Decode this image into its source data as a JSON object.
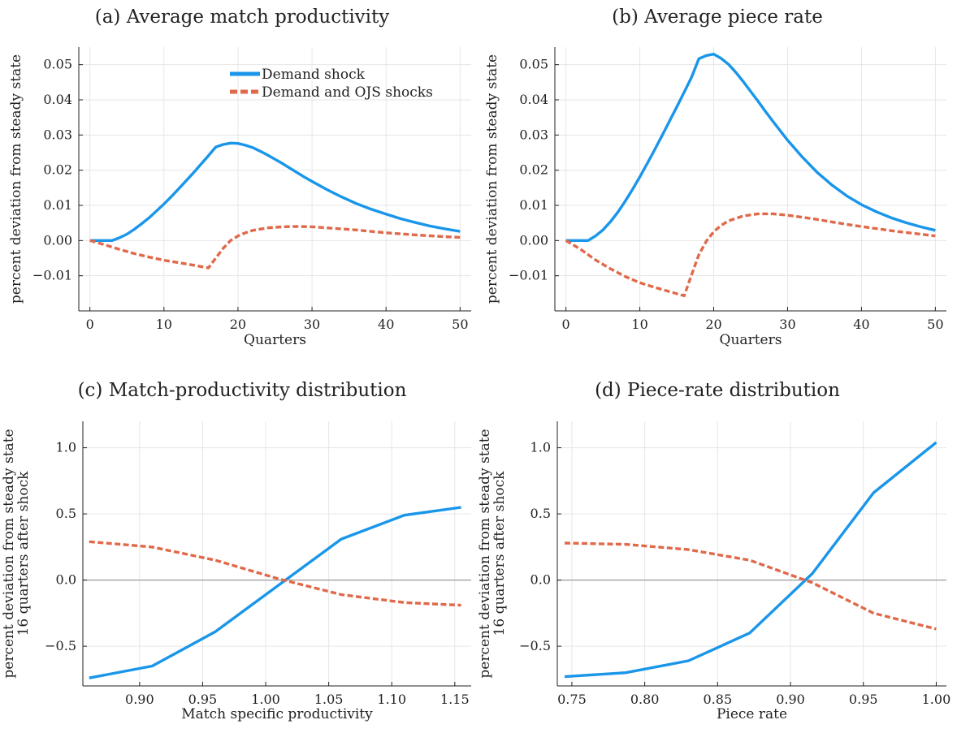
{
  "colors": {
    "demand": "#1996ea",
    "ojs": "#e0694a",
    "grid": "#e6e6e6",
    "axis": "#222222",
    "zero_line": "#9a9a9a"
  },
  "legend": {
    "demand": "Demand shock",
    "ojs": "Demand and OJS shocks"
  },
  "chart_data": [
    {
      "id": "a",
      "type": "line",
      "title": "(a) Average match productivity",
      "xlabel": "Quarters",
      "ylabel": [
        "percent deviation from steady state"
      ],
      "xlim": [
        -1.5,
        51.5
      ],
      "ylim": [
        -0.02,
        0.055
      ],
      "xticks": [
        0,
        10,
        20,
        30,
        40,
        50
      ],
      "xtick_labels": [
        "0",
        "10",
        "20",
        "30",
        "40",
        "50"
      ],
      "yticks": [
        -0.01,
        0.0,
        0.01,
        0.02,
        0.03,
        0.04,
        0.05
      ],
      "ytick_labels": [
        "−0.01",
        "0.00",
        "0.01",
        "0.02",
        "0.03",
        "0.04",
        "0.05"
      ],
      "grid": true,
      "legend_position": "top-right",
      "zero_line": false,
      "series": [
        {
          "key": "demand",
          "name": "Demand shock",
          "style": "solid",
          "x": [
            0,
            1,
            2,
            3,
            4,
            5,
            6,
            7,
            8,
            9,
            10,
            11,
            12,
            13,
            14,
            15,
            16,
            17,
            18,
            19,
            20,
            21,
            22,
            23,
            24,
            25,
            26,
            27,
            28,
            29,
            30,
            32,
            34,
            36,
            38,
            40,
            42,
            44,
            46,
            48,
            50
          ],
          "y": [
            0.0,
            0.0,
            0.0,
            0.0,
            0.0008,
            0.0018,
            0.0032,
            0.0048,
            0.0065,
            0.0084,
            0.0104,
            0.0125,
            0.0147,
            0.017,
            0.0193,
            0.0217,
            0.0241,
            0.0266,
            0.0273,
            0.0277,
            0.0276,
            0.0271,
            0.0264,
            0.0254,
            0.0243,
            0.0231,
            0.0219,
            0.0206,
            0.0193,
            0.018,
            0.0168,
            0.0145,
            0.0124,
            0.0105,
            0.0089,
            0.0075,
            0.0062,
            0.0051,
            0.0041,
            0.0033,
            0.0026
          ]
        },
        {
          "key": "ojs",
          "name": "Demand and OJS shocks",
          "style": "dashed",
          "x": [
            0,
            2,
            4,
            6,
            8,
            10,
            12,
            14,
            16,
            17,
            18,
            19,
            20,
            21,
            22,
            24,
            26,
            28,
            30,
            32,
            34,
            36,
            38,
            40,
            44,
            48,
            50
          ],
          "y": [
            0.0,
            -0.0012,
            -0.0025,
            -0.0037,
            -0.0047,
            -0.0056,
            -0.0063,
            -0.007,
            -0.0078,
            -0.005,
            -0.0022,
            0.0,
            0.0013,
            0.0022,
            0.0029,
            0.0036,
            0.0039,
            0.004,
            0.0039,
            0.0036,
            0.0033,
            0.003,
            0.0026,
            0.0022,
            0.0016,
            0.0011,
            0.0009
          ]
        }
      ]
    },
    {
      "id": "b",
      "type": "line",
      "title": "(b) Average piece rate",
      "xlabel": "Quarters",
      "ylabel": [
        "percent deviation from steady state"
      ],
      "xlim": [
        -1.5,
        51.5
      ],
      "ylim": [
        -0.02,
        0.055
      ],
      "xticks": [
        0,
        10,
        20,
        30,
        40,
        50
      ],
      "xtick_labels": [
        "0",
        "10",
        "20",
        "30",
        "40",
        "50"
      ],
      "yticks": [
        -0.01,
        0.0,
        0.01,
        0.02,
        0.03,
        0.04,
        0.05
      ],
      "ytick_labels": [
        "−0.01",
        "0.00",
        "0.01",
        "0.02",
        "0.03",
        "0.04",
        "0.05"
      ],
      "grid": true,
      "zero_line": false,
      "series": [
        {
          "key": "demand",
          "name": "Demand shock",
          "style": "solid",
          "x": [
            0,
            1,
            2,
            3,
            4,
            5,
            6,
            7,
            8,
            9,
            10,
            11,
            12,
            13,
            14,
            15,
            16,
            17,
            18,
            19,
            20,
            21,
            22,
            23,
            24,
            25,
            26,
            27,
            28,
            29,
            30,
            32,
            34,
            36,
            38,
            40,
            42,
            44,
            46,
            48,
            50
          ],
          "y": [
            0.0,
            0.0,
            0.0,
            0.0,
            0.0013,
            0.003,
            0.0053,
            0.008,
            0.0111,
            0.0145,
            0.0181,
            0.0219,
            0.0258,
            0.0298,
            0.0339,
            0.038,
            0.0422,
            0.0464,
            0.0517,
            0.0526,
            0.053,
            0.0518,
            0.0501,
            0.0478,
            0.0452,
            0.0424,
            0.0396,
            0.0367,
            0.0339,
            0.0312,
            0.0285,
            0.0237,
            0.0194,
            0.0158,
            0.0127,
            0.0102,
            0.0082,
            0.0065,
            0.0051,
            0.0039,
            0.0029
          ]
        },
        {
          "key": "ojs",
          "name": "Demand and OJS shocks",
          "style": "dashed",
          "x": [
            0,
            2,
            4,
            6,
            8,
            10,
            12,
            14,
            16,
            17,
            18,
            19,
            20,
            21,
            22,
            24,
            26,
            28,
            30,
            32,
            34,
            36,
            38,
            40,
            44,
            48,
            50
          ],
          "y": [
            0.0,
            -0.0025,
            -0.0055,
            -0.008,
            -0.0102,
            -0.012,
            -0.0133,
            -0.0145,
            -0.0157,
            -0.0098,
            -0.004,
            -0.0002,
            0.0025,
            0.0043,
            0.0056,
            0.007,
            0.0076,
            0.0076,
            0.0072,
            0.0066,
            0.006,
            0.0053,
            0.0046,
            0.004,
            0.0028,
            0.0018,
            0.0013
          ]
        }
      ]
    },
    {
      "id": "c",
      "type": "line",
      "title": "(c) Match-productivity distribution",
      "xlabel": "Match specific productivity",
      "ylabel": [
        "percent deviation from steady state",
        "16 quarters after shock"
      ],
      "xlim": [
        0.855,
        1.163
      ],
      "ylim": [
        -0.8,
        1.2
      ],
      "xticks": [
        0.9,
        0.95,
        1.0,
        1.05,
        1.1,
        1.15
      ],
      "xtick_labels": [
        "0.90",
        "0.95",
        "1.00",
        "1.05",
        "1.10",
        "1.15"
      ],
      "yticks": [
        -0.5,
        0.0,
        0.5,
        1.0
      ],
      "ytick_labels": [
        "−0.5",
        "0.0",
        "0.5",
        "1.0"
      ],
      "grid": true,
      "zero_line": true,
      "series": [
        {
          "key": "demand",
          "name": "Demand shock",
          "style": "solid",
          "x": [
            0.86,
            0.91,
            0.96,
            1.01,
            1.06,
            1.11,
            1.155
          ],
          "y": [
            -0.74,
            -0.65,
            -0.39,
            -0.04,
            0.31,
            0.49,
            0.55
          ]
        },
        {
          "key": "ojs",
          "name": "Demand and OJS shocks",
          "style": "dashed",
          "x": [
            0.86,
            0.91,
            0.96,
            1.01,
            1.06,
            1.11,
            1.155
          ],
          "y": [
            0.29,
            0.25,
            0.15,
            0.01,
            -0.11,
            -0.17,
            -0.19
          ]
        }
      ]
    },
    {
      "id": "d",
      "type": "line",
      "title": "(d) Piece-rate distribution",
      "xlabel": "Piece rate",
      "ylabel": [
        "percent deviation from steady state",
        "16 quarters after shock"
      ],
      "xlim": [
        0.74,
        1.007
      ],
      "ylim": [
        -0.8,
        1.2
      ],
      "xticks": [
        0.75,
        0.8,
        0.85,
        0.9,
        0.95,
        1.0
      ],
      "xtick_labels": [
        "0.75",
        "0.80",
        "0.85",
        "0.90",
        "0.95",
        "1.00"
      ],
      "yticks": [
        -0.5,
        0.0,
        0.5,
        1.0
      ],
      "ytick_labels": [
        "−0.5",
        "0.0",
        "0.5",
        "1.0"
      ],
      "grid": true,
      "zero_line": true,
      "series": [
        {
          "key": "demand",
          "name": "Demand shock",
          "style": "solid",
          "x": [
            0.745,
            0.787,
            0.83,
            0.872,
            0.915,
            0.957,
            1.0
          ],
          "y": [
            -0.73,
            -0.7,
            -0.61,
            -0.4,
            0.05,
            0.66,
            1.04
          ]
        },
        {
          "key": "ojs",
          "name": "Demand and OJS shocks",
          "style": "dashed",
          "x": [
            0.745,
            0.787,
            0.83,
            0.872,
            0.915,
            0.957,
            1.0
          ],
          "y": [
            0.28,
            0.27,
            0.23,
            0.15,
            -0.02,
            -0.25,
            -0.37
          ]
        }
      ]
    }
  ]
}
